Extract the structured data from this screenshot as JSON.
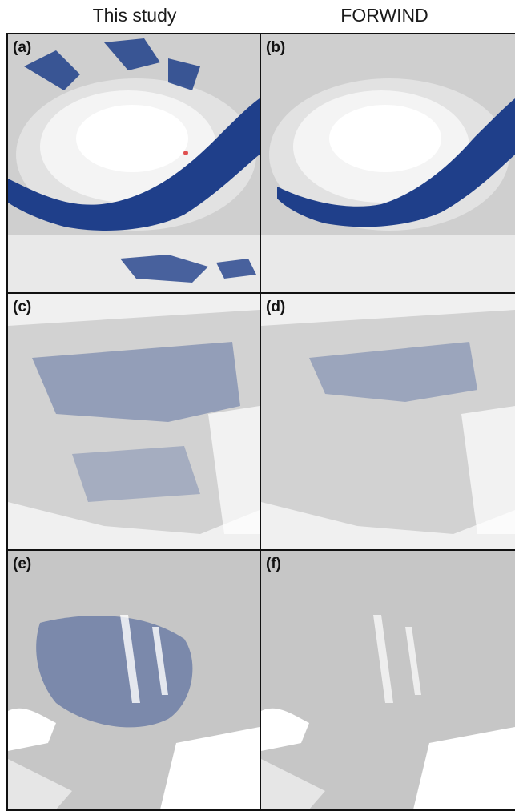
{
  "columns": {
    "left": "This study",
    "right": "FORWIND"
  },
  "panels": [
    {
      "label": "(a)"
    },
    {
      "label": "(b)"
    },
    {
      "label": "(c)"
    },
    {
      "label": "(d)"
    },
    {
      "label": "(e)"
    },
    {
      "label": "(f)"
    }
  ],
  "colors": {
    "blue": "#1f3f8a",
    "light_gray": "#e6e6e6",
    "mid_gray": "#c9c9c9",
    "dark_gray": "#a9a9a9",
    "white": "#ffffff",
    "red": "#e05050"
  }
}
